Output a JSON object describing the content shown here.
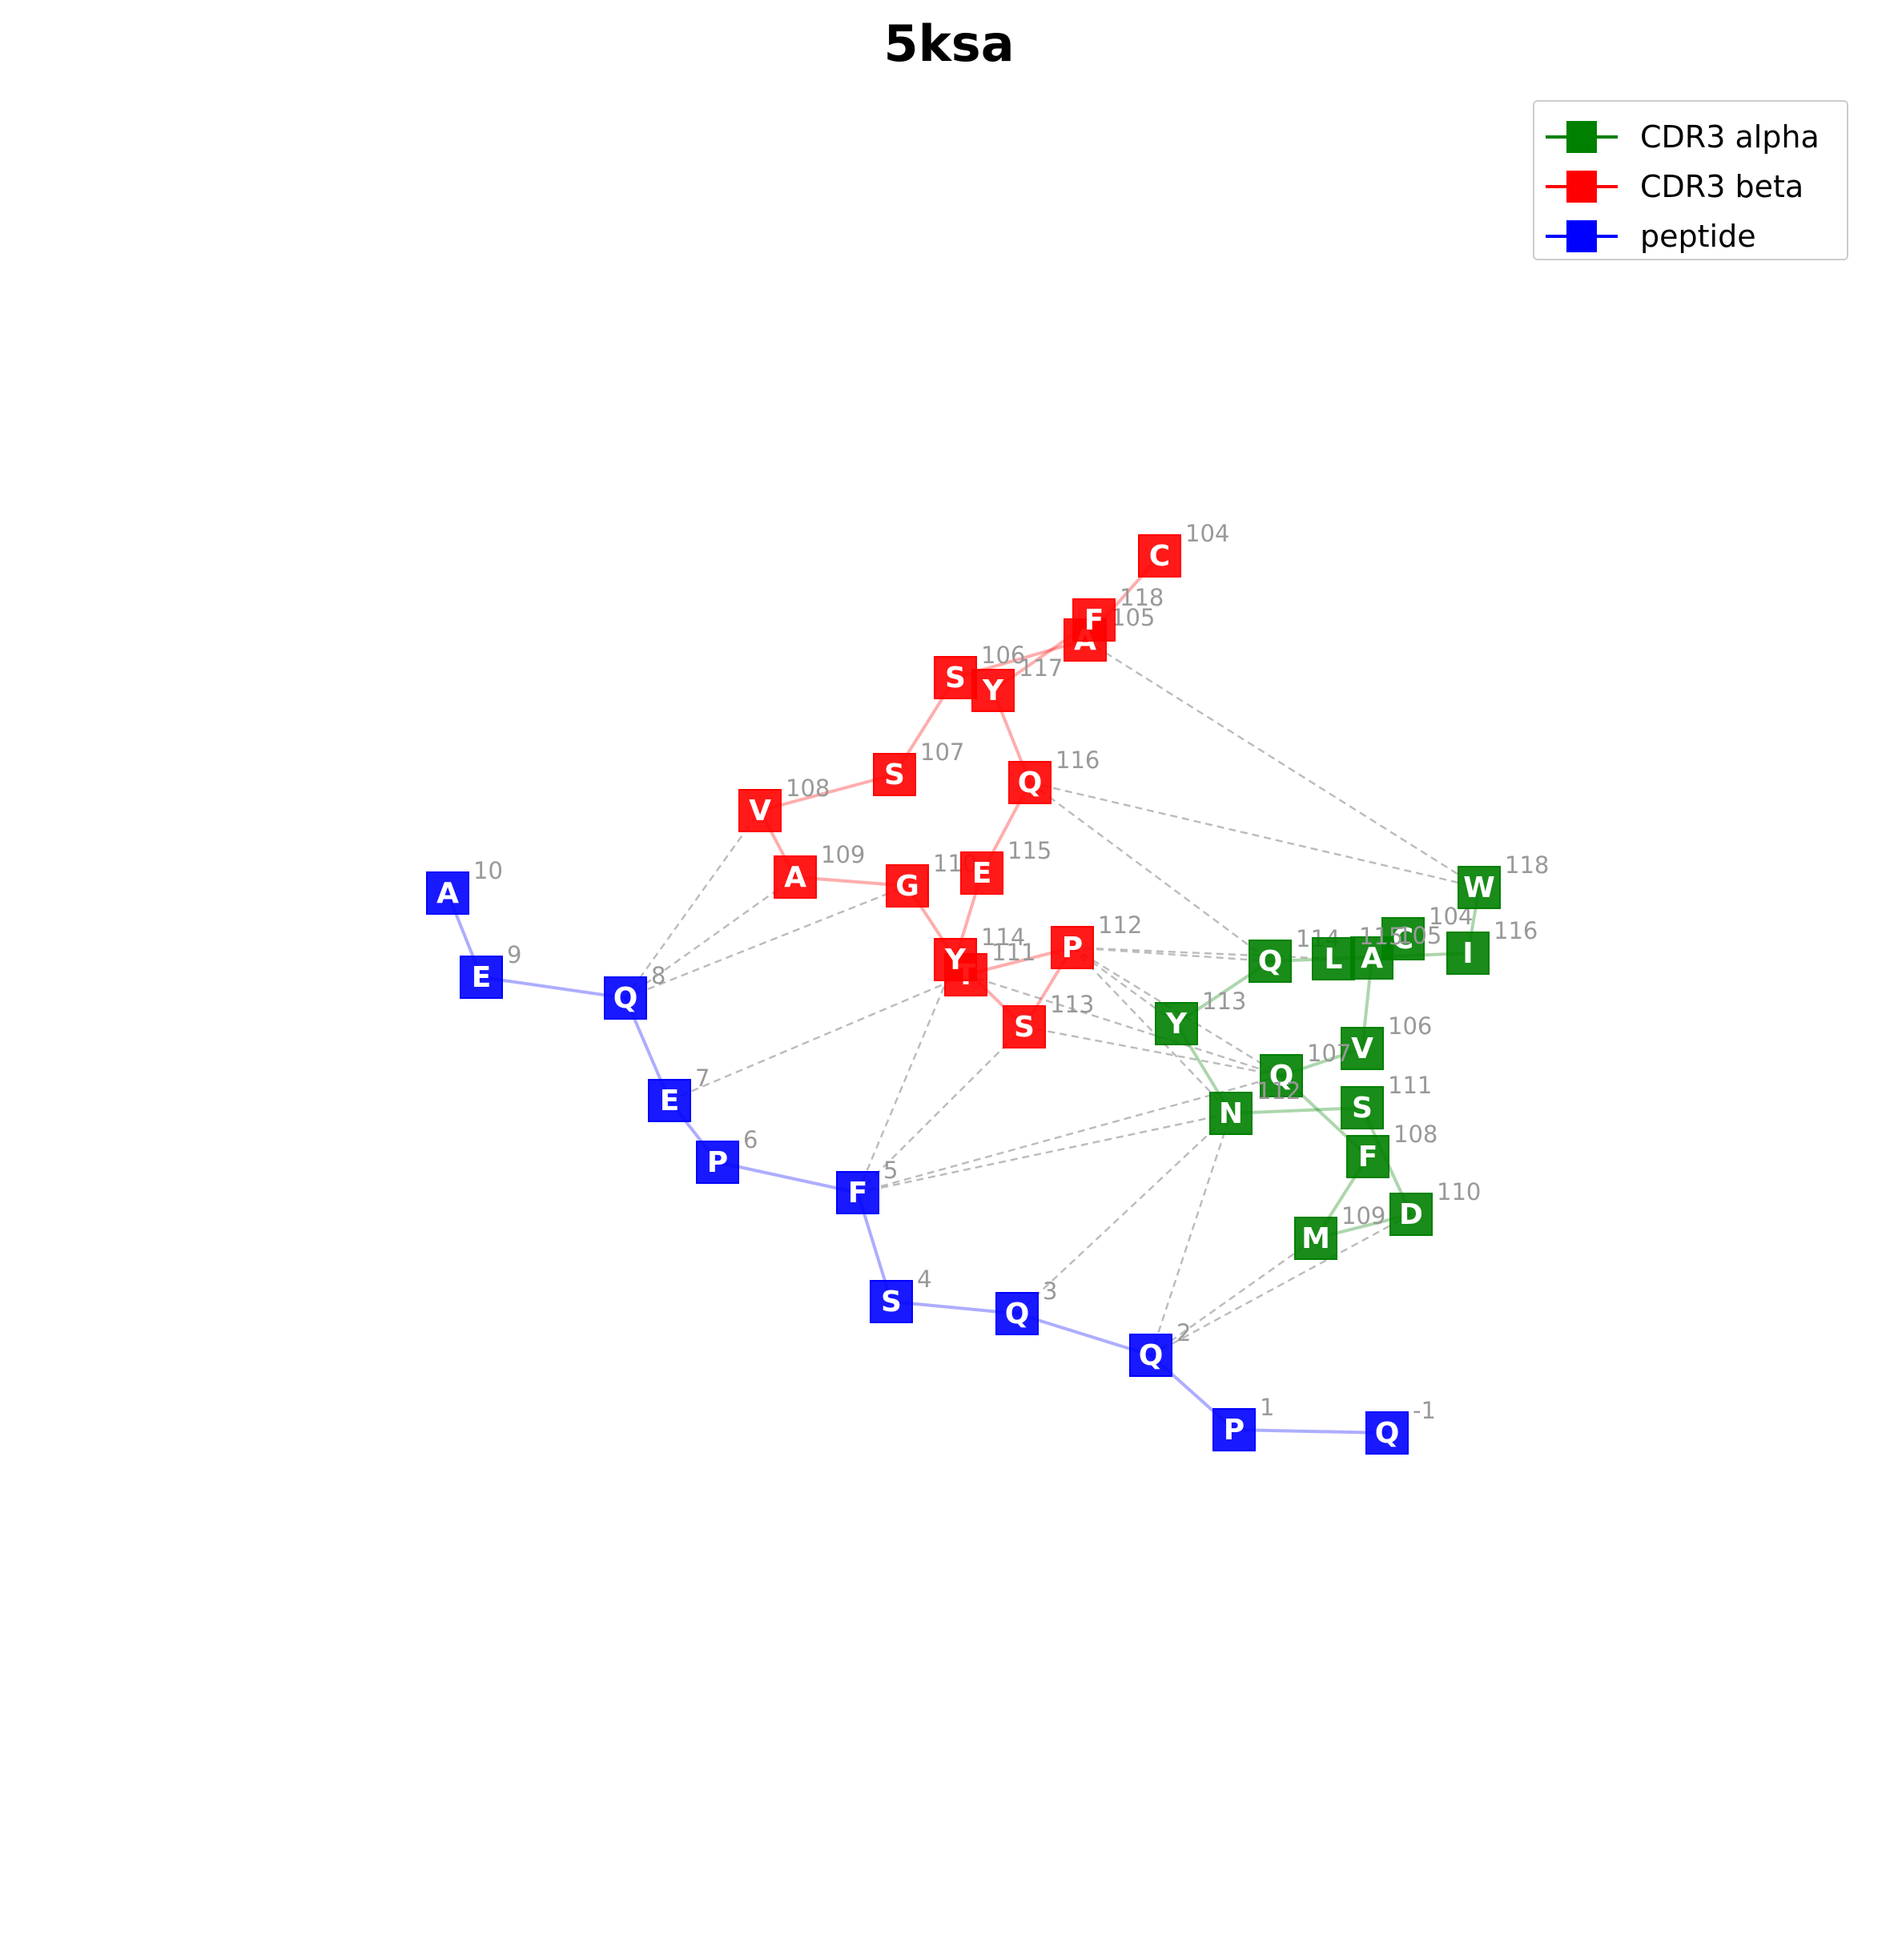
{
  "title": "5ksa",
  "legend": [
    {
      "label": "CDR3 alpha",
      "color": "#008000"
    },
    {
      "label": "CDR3 beta",
      "color": "#ff0000"
    },
    {
      "label": "peptide",
      "color": "#0000ff"
    }
  ],
  "colors": {
    "alpha": "#008000",
    "beta": "#ff0000",
    "peptide": "#0000ff",
    "index_label": "#999999",
    "contact_line": "#bbbbbb"
  },
  "chains": {
    "peptide": [
      {
        "aa": "A",
        "idx": "10"
      },
      {
        "aa": "E",
        "idx": "9"
      },
      {
        "aa": "Q",
        "idx": "8"
      },
      {
        "aa": "E",
        "idx": "7"
      },
      {
        "aa": "P",
        "idx": "6"
      },
      {
        "aa": "F",
        "idx": "5"
      },
      {
        "aa": "S",
        "idx": "4"
      },
      {
        "aa": "Q",
        "idx": "3"
      },
      {
        "aa": "Q",
        "idx": "2"
      },
      {
        "aa": "P",
        "idx": "1"
      },
      {
        "aa": "Q",
        "idx": "-1"
      }
    ],
    "beta": [
      {
        "aa": "C",
        "idx": "104"
      },
      {
        "aa": "A",
        "idx": "105"
      },
      {
        "aa": "S",
        "idx": "106"
      },
      {
        "aa": "S",
        "idx": "107"
      },
      {
        "aa": "V",
        "idx": "108"
      },
      {
        "aa": "A",
        "idx": "109"
      },
      {
        "aa": "G",
        "idx": "110"
      },
      {
        "aa": "T",
        "idx": "111"
      },
      {
        "aa": "P",
        "idx": "112"
      },
      {
        "aa": "S",
        "idx": "113"
      },
      {
        "aa": "Y",
        "idx": "114"
      },
      {
        "aa": "E",
        "idx": "115"
      },
      {
        "aa": "Q",
        "idx": "116"
      },
      {
        "aa": "Y",
        "idx": "117"
      },
      {
        "aa": "F",
        "idx": "118"
      }
    ],
    "alpha": [
      {
        "aa": "C",
        "idx": "104"
      },
      {
        "aa": "A",
        "idx": "105"
      },
      {
        "aa": "V",
        "idx": "106"
      },
      {
        "aa": "Q",
        "idx": "107"
      },
      {
        "aa": "F",
        "idx": "108"
      },
      {
        "aa": "M",
        "idx": "109"
      },
      {
        "aa": "D",
        "idx": "110"
      },
      {
        "aa": "S",
        "idx": "111"
      },
      {
        "aa": "N",
        "idx": "112"
      },
      {
        "aa": "Y",
        "idx": "113"
      },
      {
        "aa": "Q",
        "idx": "114"
      },
      {
        "aa": "L",
        "idx": "115"
      },
      {
        "aa": "I",
        "idx": "116"
      },
      {
        "aa": "W",
        "idx": "118"
      }
    ]
  },
  "contacts": [
    [
      "peptide:8",
      "beta:108"
    ],
    [
      "peptide:8",
      "beta:109"
    ],
    [
      "peptide:8",
      "beta:110"
    ],
    [
      "peptide:7",
      "beta:111"
    ],
    [
      "peptide:5",
      "beta:114"
    ],
    [
      "peptide:5",
      "beta:113"
    ],
    [
      "peptide:5",
      "alpha:107"
    ],
    [
      "peptide:5",
      "alpha:112"
    ],
    [
      "peptide:3",
      "alpha:112"
    ],
    [
      "peptide:2",
      "alpha:112"
    ],
    [
      "peptide:2",
      "alpha:109"
    ],
    [
      "peptide:2",
      "alpha:110"
    ],
    [
      "beta:112",
      "alpha:114"
    ],
    [
      "beta:112",
      "alpha:115"
    ],
    [
      "beta:112",
      "alpha:107"
    ],
    [
      "beta:112",
      "alpha:112"
    ],
    [
      "beta:112",
      "alpha:113"
    ],
    [
      "beta:113",
      "alpha:107"
    ],
    [
      "beta:111",
      "alpha:107"
    ],
    [
      "beta:116",
      "alpha:118"
    ],
    [
      "beta:116",
      "alpha:114"
    ],
    [
      "beta:105",
      "alpha:118"
    ]
  ]
}
